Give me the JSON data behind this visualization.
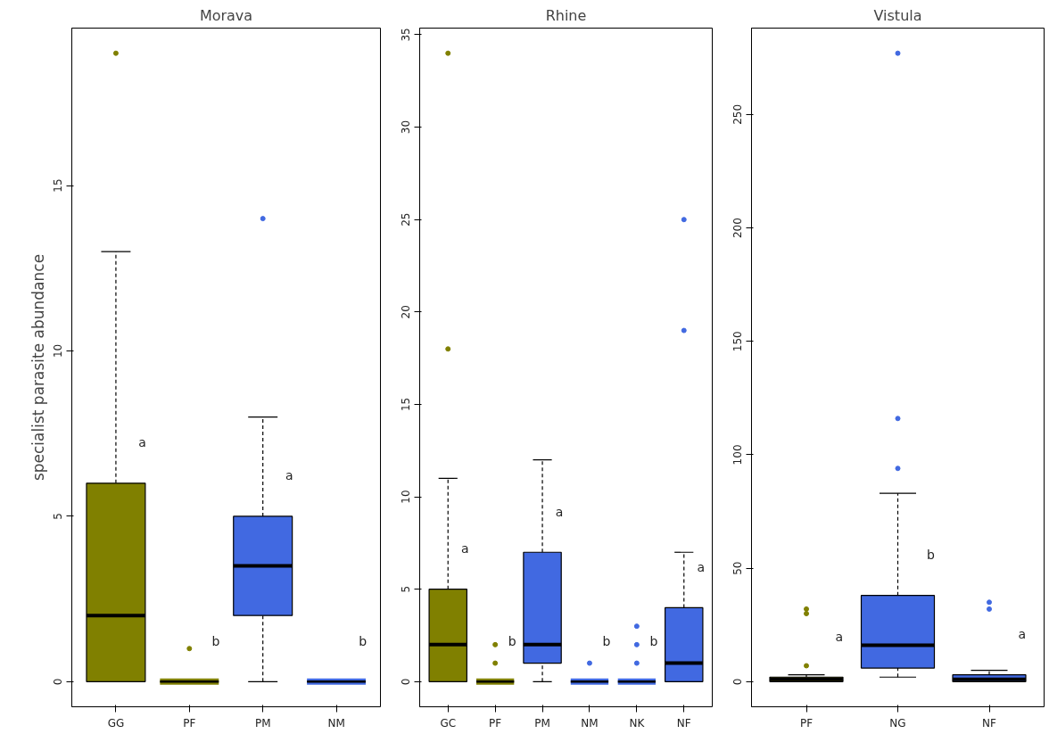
{
  "chart_data": [
    {
      "type": "box",
      "title": "Morava",
      "ylabel": "specialist parasite abundance",
      "categories": [
        "GG",
        "PF",
        "PM",
        "NM"
      ],
      "colors": [
        "#808000",
        "#808000",
        "#4169e1",
        "#4169e1"
      ],
      "boxes": [
        {
          "low": 0,
          "q1": 0,
          "median": 2,
          "q3": 6,
          "high": 13,
          "outliers": [
            19
          ]
        },
        {
          "low": 0,
          "q1": 0,
          "median": 0,
          "q3": 0,
          "high": 0,
          "outliers": [
            1
          ]
        },
        {
          "low": 0,
          "q1": 2,
          "median": 3.5,
          "q3": 5,
          "high": 8,
          "outliers": [
            14
          ]
        },
        {
          "low": 0,
          "q1": 0,
          "median": 0,
          "q3": 0,
          "high": 0
        }
      ],
      "ylim": [
        -0.76,
        19.76
      ],
      "yticks": [
        0,
        5,
        10,
        15
      ],
      "annotations": [
        "a",
        "b",
        "a",
        "b"
      ]
    },
    {
      "type": "box",
      "title": "Rhine",
      "categories": [
        "GC",
        "PF",
        "PM",
        "NM",
        "NK",
        "NF"
      ],
      "colors": [
        "#808000",
        "#808000",
        "#4169e1",
        "#4169e1",
        "#4169e1",
        "#4169e1"
      ],
      "boxes": [
        {
          "low": 0,
          "q1": 0,
          "median": 2,
          "q3": 5,
          "high": 11,
          "outliers": [
            18,
            34
          ]
        },
        {
          "low": 0,
          "q1": 0,
          "median": 0,
          "q3": 0,
          "high": 0,
          "outliers": [
            1,
            2
          ]
        },
        {
          "low": 0,
          "q1": 1,
          "median": 2,
          "q3": 7,
          "high": 12
        },
        {
          "low": 0,
          "q1": 0,
          "median": 0,
          "q3": 0,
          "high": 0,
          "outliers": [
            1
          ]
        },
        {
          "low": 0,
          "q1": 0,
          "median": 0,
          "q3": 0,
          "high": 0,
          "outliers": [
            1,
            2,
            3
          ]
        },
        {
          "low": 0,
          "q1": 0,
          "median": 1,
          "q3": 4,
          "high": 7,
          "outliers": [
            19,
            25
          ]
        }
      ],
      "ylim": [
        -1.36,
        35.36
      ],
      "yticks": [
        0,
        5,
        10,
        15,
        20,
        25,
        30,
        35
      ],
      "annotations": [
        "a",
        "b",
        "a",
        "b",
        "b",
        "a"
      ]
    },
    {
      "type": "box",
      "title": "Vistula",
      "categories": [
        "PF",
        "NG",
        "NF"
      ],
      "colors": [
        "#808000",
        "#4169e1",
        "#4169e1"
      ],
      "boxes": [
        {
          "low": 0,
          "q1": 0,
          "median": 1,
          "q3": 2,
          "high": 3,
          "outliers": [
            7,
            30,
            32
          ]
        },
        {
          "low": 2,
          "q1": 6,
          "median": 16,
          "q3": 38,
          "high": 83,
          "outliers": [
            94,
            116,
            277
          ]
        },
        {
          "low": 0,
          "q1": 0,
          "median": 1,
          "q3": 3,
          "high": 5,
          "outliers": [
            32,
            35
          ]
        }
      ],
      "ylim": [
        -11.08,
        288.08
      ],
      "yticks": [
        0,
        50,
        100,
        150,
        200,
        250
      ],
      "annotations": [
        "a",
        "b",
        "a"
      ]
    }
  ]
}
